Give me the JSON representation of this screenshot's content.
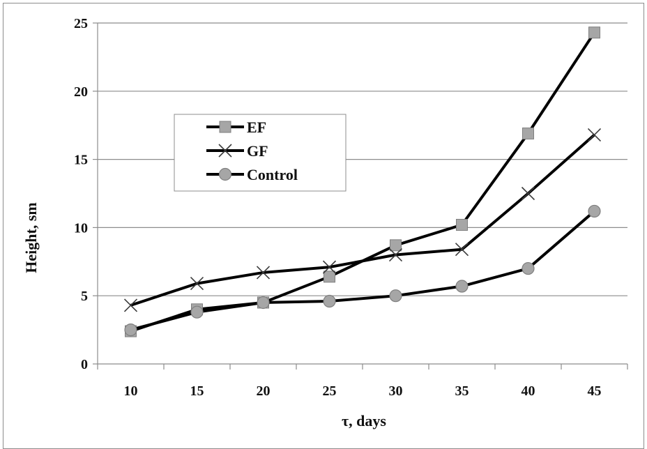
{
  "chart_data": {
    "type": "line",
    "title": "",
    "xlabel": "τ,  days",
    "ylabel": "Height, sm",
    "x": [
      10,
      15,
      20,
      25,
      30,
      35,
      40,
      45
    ],
    "x_ticks": [
      "10",
      "15",
      "20",
      "25",
      "30",
      "35",
      "40",
      "45"
    ],
    "y_ticks": [
      "0",
      "5",
      "10",
      "15",
      "20",
      "25"
    ],
    "ylim": [
      0,
      25
    ],
    "grid": "horizontal",
    "legend_position": "upper-left",
    "series": [
      {
        "name": "EF",
        "marker": "square",
        "values": [
          2.4,
          4.0,
          4.5,
          6.4,
          8.7,
          10.2,
          16.9,
          24.3
        ]
      },
      {
        "name": "GF",
        "marker": "x",
        "values": [
          4.3,
          5.9,
          6.7,
          7.1,
          8.0,
          8.4,
          12.5,
          16.8
        ]
      },
      {
        "name": "Control",
        "marker": "circle",
        "values": [
          2.5,
          3.8,
          4.5,
          4.6,
          5.0,
          5.7,
          7.0,
          11.2
        ]
      }
    ],
    "colors": {
      "line": "#000000",
      "marker_fill": "#a6a6a6",
      "marker_stroke": "#7f7f7f",
      "grid": "#8c8c8c"
    }
  }
}
